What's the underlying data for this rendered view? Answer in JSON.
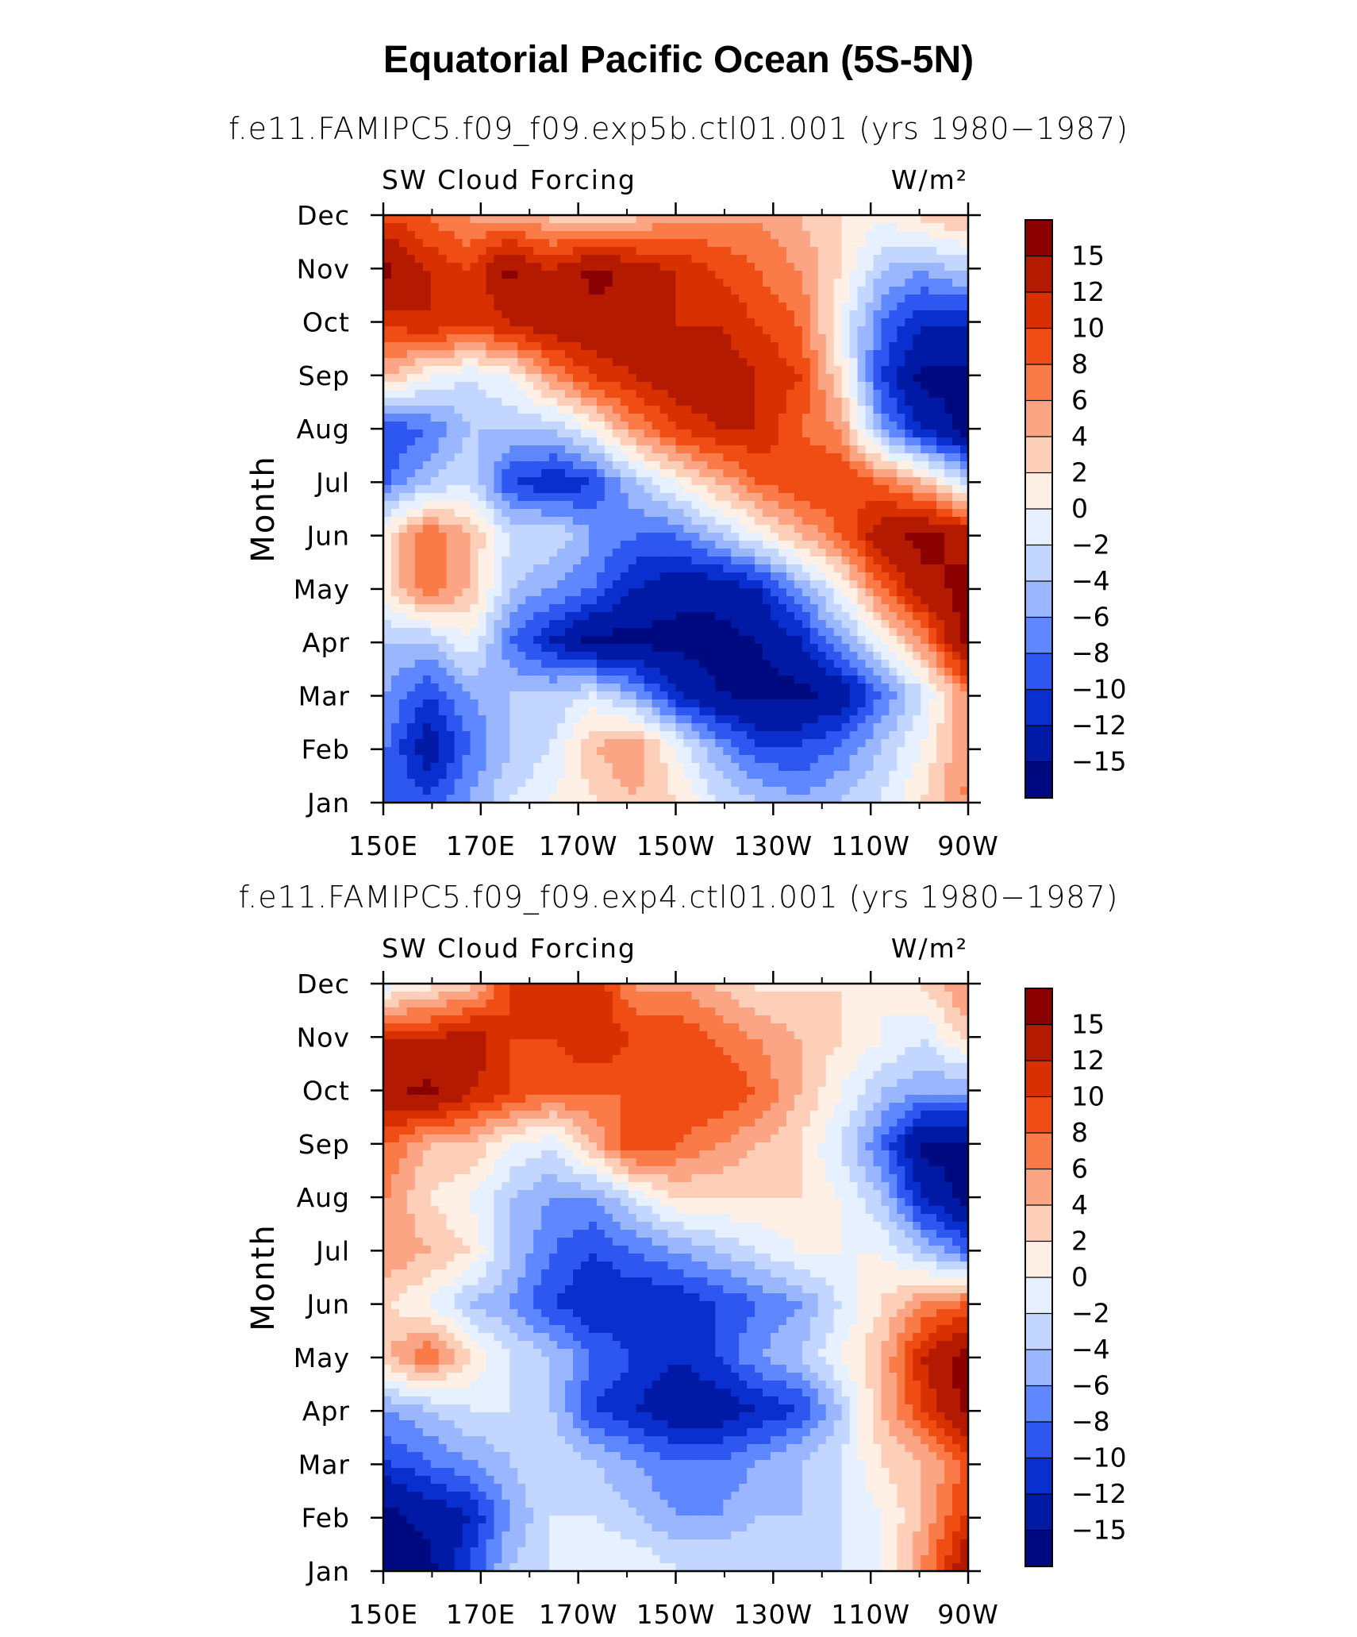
{
  "page_title": "Equatorial Pacific Ocean (5S-5N)",
  "color_scale": {
    "levels": [
      "15",
      "12",
      "10",
      "8",
      "6",
      "4",
      "2",
      "0",
      "−2",
      "−4",
      "−6",
      "−8",
      "−10",
      "−12",
      "−15"
    ],
    "colors": [
      "#8b0000",
      "#b31a00",
      "#d93000",
      "#f04d14",
      "#fa7a48",
      "#fca584",
      "#fdcfb8",
      "#fff0e6",
      "#e6f0ff",
      "#c2d6ff",
      "#99b6ff",
      "#5f87ff",
      "#2d57f0",
      "#0a2fcf",
      "#001aa6",
      "#000a80"
    ]
  },
  "chart_data": [
    {
      "type": "heatmap",
      "subtitle": "f.e11.FAMIPC5.f09_f09.exp5b.ctl01.001 (yrs 1980−1987)",
      "variable": "SW Cloud Forcing",
      "units": "W/m²",
      "ylabel": "Month",
      "xticks": [
        "150E",
        "170E",
        "170W",
        "150W",
        "130W",
        "110W",
        "90W"
      ],
      "yticks": [
        "Jan",
        "Feb",
        "Mar",
        "Apr",
        "May",
        "Jun",
        "Jul",
        "Aug",
        "Sep",
        "Oct",
        "Nov",
        "Dec"
      ],
      "x_range": [
        "150E",
        "90W"
      ],
      "colorbar_levels": [
        15,
        12,
        10,
        8,
        6,
        4,
        2,
        0,
        -2,
        -4,
        -6,
        -8,
        -10,
        -12,
        -15
      ],
      "grid": [
        [
          -8,
          -10,
          -6,
          -2,
          0,
          2,
          4,
          2,
          -2,
          -4,
          -6,
          -4,
          -2,
          2,
          6
        ],
        [
          -8,
          -14,
          -8,
          -4,
          -2,
          4,
          6,
          0,
          -6,
          -10,
          -10,
          -8,
          -4,
          0,
          6
        ],
        [
          -6,
          -10,
          -6,
          -4,
          -4,
          -2,
          -6,
          -12,
          -15,
          -16,
          -16,
          -14,
          -8,
          -2,
          6
        ],
        [
          -4,
          -4,
          0,
          -8,
          -12,
          -16,
          -16,
          -16,
          -16,
          -15,
          -12,
          -6,
          0,
          6,
          16
        ],
        [
          2,
          8,
          4,
          -4,
          -6,
          -8,
          -12,
          -14,
          -14,
          -12,
          -6,
          0,
          8,
          14,
          16
        ],
        [
          2,
          8,
          4,
          -2,
          -2,
          -6,
          -8,
          -8,
          -4,
          0,
          4,
          8,
          14,
          16,
          14
        ],
        [
          -8,
          -4,
          -2,
          -10,
          -12,
          -10,
          -4,
          0,
          4,
          8,
          10,
          10,
          8,
          4,
          -2
        ],
        [
          -10,
          -8,
          -4,
          -4,
          -4,
          0,
          6,
          10,
          12,
          12,
          8,
          6,
          -6,
          -12,
          -16
        ],
        [
          4,
          0,
          -2,
          0,
          6,
          10,
          12,
          14,
          14,
          12,
          10,
          2,
          -10,
          -16,
          -16
        ],
        [
          10,
          12,
          10,
          12,
          14,
          14,
          15,
          12,
          12,
          10,
          8,
          0,
          -8,
          -12,
          -12
        ],
        [
          16,
          12,
          10,
          16,
          12,
          16,
          14,
          12,
          10,
          8,
          6,
          2,
          -4,
          -6,
          -4
        ],
        [
          10,
          8,
          6,
          6,
          4,
          4,
          4,
          6,
          6,
          6,
          4,
          2,
          0,
          2,
          4
        ]
      ]
    },
    {
      "type": "heatmap",
      "subtitle": "f.e11.FAMIPC5.f09_f09.exp4.ctl01.001 (yrs 1980−1987)",
      "variable": "SW Cloud Forcing",
      "units": "W/m²",
      "ylabel": "Month",
      "xticks": [
        "150E",
        "170E",
        "170W",
        "150W",
        "130W",
        "110W",
        "90W"
      ],
      "yticks": [
        "Jan",
        "Feb",
        "Mar",
        "Apr",
        "May",
        "Jun",
        "Jul",
        "Aug",
        "Sep",
        "Oct",
        "Nov",
        "Dec"
      ],
      "x_range": [
        "150E",
        "90W"
      ],
      "colorbar_levels": [
        15,
        12,
        10,
        8,
        6,
        4,
        2,
        0,
        -2,
        -4,
        -6,
        -8,
        -10,
        -12,
        -15
      ],
      "grid": [
        [
          -16,
          -16,
          -10,
          -4,
          -2,
          0,
          0,
          -2,
          -2,
          -2,
          -2,
          -2,
          0,
          6,
          14
        ],
        [
          -16,
          -14,
          -12,
          -6,
          -2,
          -2,
          -4,
          -6,
          -6,
          -4,
          -4,
          -2,
          0,
          4,
          10
        ],
        [
          -10,
          -8,
          -6,
          -4,
          -2,
          -4,
          -6,
          -8,
          -8,
          -6,
          -4,
          -2,
          2,
          4,
          8
        ],
        [
          -6,
          -4,
          -2,
          -2,
          -4,
          -10,
          -12,
          -14,
          -14,
          -12,
          -10,
          -4,
          4,
          10,
          16
        ],
        [
          4,
          8,
          2,
          -2,
          -4,
          -8,
          -10,
          -12,
          -10,
          -6,
          -4,
          0,
          4,
          12,
          16
        ],
        [
          2,
          0,
          -4,
          -6,
          -10,
          -12,
          -12,
          -12,
          -10,
          -8,
          -6,
          -2,
          2,
          6,
          8
        ],
        [
          6,
          4,
          2,
          -4,
          -8,
          -10,
          -8,
          -6,
          -4,
          -2,
          0,
          0,
          0,
          -4,
          -8
        ],
        [
          6,
          2,
          0,
          -4,
          -6,
          -6,
          -2,
          2,
          2,
          2,
          2,
          0,
          -4,
          -12,
          -16
        ],
        [
          8,
          4,
          4,
          0,
          -2,
          4,
          10,
          8,
          6,
          4,
          2,
          -2,
          -8,
          -16,
          -16
        ],
        [
          14,
          16,
          12,
          10,
          8,
          8,
          8,
          10,
          10,
          8,
          4,
          0,
          -4,
          -6,
          -6
        ],
        [
          12,
          12,
          14,
          10,
          10,
          12,
          10,
          10,
          8,
          6,
          4,
          2,
          0,
          -2,
          2
        ],
        [
          0,
          2,
          4,
          10,
          12,
          12,
          6,
          6,
          4,
          2,
          2,
          2,
          0,
          2,
          6
        ]
      ]
    }
  ]
}
